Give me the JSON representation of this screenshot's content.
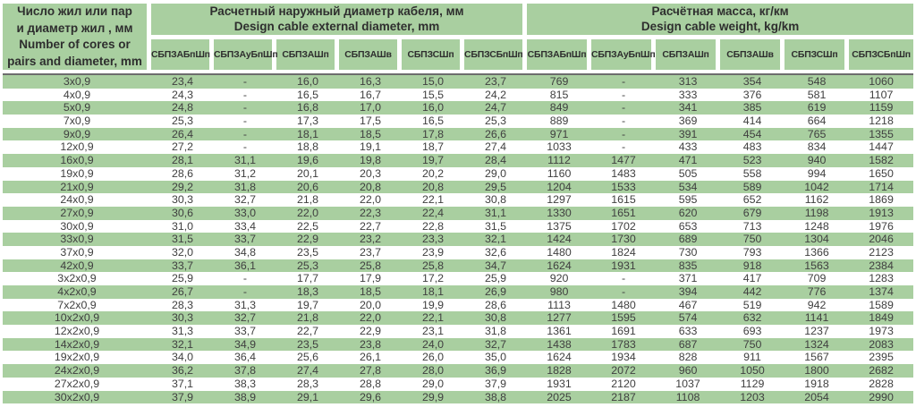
{
  "table": {
    "row_header": {
      "line1_ru": "Число жил или пар",
      "line2_ru": "и диаметр жил , мм",
      "line1_en": "Number of cores or",
      "line2_en": "pairs  and diameter, mm"
    },
    "groups": [
      {
        "title_ru": "Расчетный наружный диаметр кабеля, мм",
        "title_en": "Design cable external diameter, mm"
      },
      {
        "title_ru": "Расчётная масса, кг/км",
        "title_en": "Design cable weight, kg/km"
      }
    ],
    "columns": [
      "СБПЗАБпШп",
      "СБПЗАуБпШп",
      "СБПЗАШп",
      "СБПЗАШв",
      "СБПЗСШп",
      "СБПЗСБпШп"
    ],
    "rows": [
      {
        "label": "3x0,9",
        "diameter": [
          "23,4",
          "-",
          "16,0",
          "16,3",
          "15,0",
          "23,7"
        ],
        "weight": [
          "769",
          "-",
          "313",
          "354",
          "548",
          "1060"
        ]
      },
      {
        "label": "4x0,9",
        "diameter": [
          "24,3",
          "-",
          "16,5",
          "16,7",
          "15,5",
          "24,2"
        ],
        "weight": [
          "815",
          "-",
          "333",
          "376",
          "581",
          "1107"
        ]
      },
      {
        "label": "5x0,9",
        "diameter": [
          "24,8",
          "-",
          "16,8",
          "17,0",
          "16,0",
          "24,7"
        ],
        "weight": [
          "849",
          "-",
          "341",
          "385",
          "619",
          "1159"
        ]
      },
      {
        "label": "7x0,9",
        "diameter": [
          "25,3",
          "-",
          "17,3",
          "17,5",
          "16,5",
          "25,3"
        ],
        "weight": [
          "889",
          "-",
          "369",
          "414",
          "664",
          "1218"
        ]
      },
      {
        "label": "9x0,9",
        "diameter": [
          "26,4",
          "-",
          "18,1",
          "18,5",
          "17,8",
          "26,6"
        ],
        "weight": [
          "971",
          "-",
          "391",
          "454",
          "765",
          "1355"
        ]
      },
      {
        "label": "12x0,9",
        "diameter": [
          "27,2",
          "-",
          "18,8",
          "19,1",
          "18,7",
          "27,4"
        ],
        "weight": [
          "1033",
          "-",
          "433",
          "483",
          "834",
          "1447"
        ]
      },
      {
        "label": "16x0,9",
        "diameter": [
          "28,1",
          "31,1",
          "19,6",
          "19,8",
          "19,7",
          "28,4"
        ],
        "weight": [
          "1112",
          "1477",
          "471",
          "523",
          "940",
          "1582"
        ]
      },
      {
        "label": "19x0,9",
        "diameter": [
          "28,6",
          "31,2",
          "20,1",
          "20,3",
          "20,2",
          "29,0"
        ],
        "weight": [
          "1160",
          "1483",
          "505",
          "558",
          "994",
          "1650"
        ]
      },
      {
        "label": "21x0,9",
        "diameter": [
          "29,2",
          "31,8",
          "20,6",
          "20,8",
          "20,8",
          "29,5"
        ],
        "weight": [
          "1204",
          "1533",
          "534",
          "589",
          "1042",
          "1714"
        ]
      },
      {
        "label": "24x0,9",
        "diameter": [
          "30,3",
          "32,7",
          "21,8",
          "22,0",
          "22,1",
          "30,8"
        ],
        "weight": [
          "1297",
          "1615",
          "595",
          "652",
          "1162",
          "1869"
        ]
      },
      {
        "label": "27x0,9",
        "diameter": [
          "30,6",
          "33,0",
          "22,0",
          "22,3",
          "22,4",
          "31,1"
        ],
        "weight": [
          "1330",
          "1651",
          "620",
          "679",
          "1198",
          "1913"
        ]
      },
      {
        "label": "30x0,9",
        "diameter": [
          "31,0",
          "33,4",
          "22,5",
          "22,7",
          "22,8",
          "31,5"
        ],
        "weight": [
          "1375",
          "1702",
          "653",
          "713",
          "1248",
          "1976"
        ]
      },
      {
        "label": "33x0,9",
        "diameter": [
          "31,5",
          "33,7",
          "22,9",
          "23,2",
          "23,3",
          "32,1"
        ],
        "weight": [
          "1424",
          "1730",
          "689",
          "750",
          "1304",
          "2046"
        ]
      },
      {
        "label": "37x0,9",
        "diameter": [
          "32,0",
          "34,8",
          "23,5",
          "23,7",
          "23,9",
          "32,6"
        ],
        "weight": [
          "1480",
          "1824",
          "730",
          "793",
          "1366",
          "2123"
        ]
      },
      {
        "label": "42x0,9",
        "diameter": [
          "33,7",
          "36,1",
          "25,3",
          "25,8",
          "25,8",
          "34,7"
        ],
        "weight": [
          "1624",
          "1931",
          "835",
          "918",
          "1563",
          "2384"
        ]
      },
      {
        "label": "3x2x0,9",
        "diameter": [
          "25,9",
          "-",
          "17,7",
          "17,9",
          "17,2",
          "25,9"
        ],
        "weight": [
          "920",
          "-",
          "371",
          "417",
          "709",
          "1283"
        ]
      },
      {
        "label": "4x2x0,9",
        "diameter": [
          "26,7",
          "-",
          "18,3",
          "18,5",
          "18,1",
          "26,9"
        ],
        "weight": [
          "980",
          "-",
          "394",
          "442",
          "776",
          "1374"
        ]
      },
      {
        "label": "7x2x0,9",
        "diameter": [
          "28,3",
          "31,3",
          "19,7",
          "20,0",
          "19,9",
          "28,6"
        ],
        "weight": [
          "1113",
          "1480",
          "467",
          "519",
          "942",
          "1589"
        ]
      },
      {
        "label": "10x2x0,9",
        "diameter": [
          "30,3",
          "32,7",
          "21,8",
          "22,0",
          "22,1",
          "30,8"
        ],
        "weight": [
          "1277",
          "1595",
          "574",
          "632",
          "1141",
          "1849"
        ]
      },
      {
        "label": "12x2x0,9",
        "diameter": [
          "31,3",
          "33,7",
          "22,7",
          "22,9",
          "23,1",
          "31,8"
        ],
        "weight": [
          "1361",
          "1691",
          "633",
          "693",
          "1237",
          "1973"
        ]
      },
      {
        "label": "14x2x0,9",
        "diameter": [
          "32,1",
          "34,9",
          "23,5",
          "23,8",
          "24,0",
          "32,7"
        ],
        "weight": [
          "1438",
          "1783",
          "687",
          "750",
          "1324",
          "2083"
        ]
      },
      {
        "label": "19x2x0,9",
        "diameter": [
          "34,0",
          "36,4",
          "25,6",
          "26,1",
          "26,0",
          "35,0"
        ],
        "weight": [
          "1624",
          "1934",
          "828",
          "911",
          "1567",
          "2395"
        ]
      },
      {
        "label": "24x2x0,9",
        "diameter": [
          "36,2",
          "37,8",
          "27,4",
          "27,8",
          "28,0",
          "36,9"
        ],
        "weight": [
          "1828",
          "2072",
          "960",
          "1050",
          "1800",
          "2682"
        ]
      },
      {
        "label": "27x2x0,9",
        "diameter": [
          "37,1",
          "38,3",
          "28,3",
          "28,8",
          "29,0",
          "37,9"
        ],
        "weight": [
          "1931",
          "2120",
          "1037",
          "1129",
          "1918",
          "2828"
        ]
      },
      {
        "label": "30x2x0,9",
        "diameter": [
          "37,9",
          "38,9",
          "29,1",
          "29,6",
          "29,9",
          "38,8"
        ],
        "weight": [
          "2025",
          "2187",
          "1108",
          "1203",
          "2054",
          "2990"
        ]
      }
    ]
  },
  "colors": {
    "green": "#a9cfa0",
    "text": "#404040",
    "header_divider": "#6d6d6d"
  }
}
